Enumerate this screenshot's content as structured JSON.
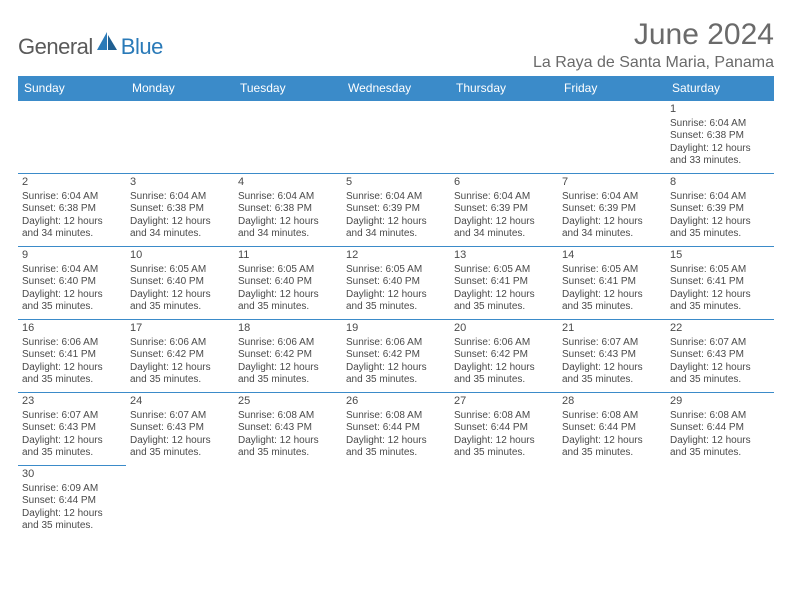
{
  "logo": {
    "general": "General",
    "blue": "Blue"
  },
  "title": "June 2024",
  "location": "La Raya de Santa Maria, Panama",
  "colors": {
    "header_bg": "#3b8bc9",
    "header_fg": "#ffffff",
    "border": "#3b8bc9",
    "text": "#4a4a4a",
    "title": "#6a6a6a",
    "logo_gray": "#5a5a5a",
    "logo_blue": "#2a7ab8"
  },
  "typography": {
    "title_fontsize": 30,
    "location_fontsize": 16,
    "header_fontsize": 12,
    "cell_fontsize": 10
  },
  "days_of_week": [
    "Sunday",
    "Monday",
    "Tuesday",
    "Wednesday",
    "Thursday",
    "Friday",
    "Saturday"
  ],
  "weeks": [
    [
      null,
      null,
      null,
      null,
      null,
      null,
      {
        "n": "1",
        "sr": "6:04 AM",
        "ss": "6:38 PM",
        "dl": "12 hours and 33 minutes."
      }
    ],
    [
      {
        "n": "2",
        "sr": "6:04 AM",
        "ss": "6:38 PM",
        "dl": "12 hours and 34 minutes."
      },
      {
        "n": "3",
        "sr": "6:04 AM",
        "ss": "6:38 PM",
        "dl": "12 hours and 34 minutes."
      },
      {
        "n": "4",
        "sr": "6:04 AM",
        "ss": "6:38 PM",
        "dl": "12 hours and 34 minutes."
      },
      {
        "n": "5",
        "sr": "6:04 AM",
        "ss": "6:39 PM",
        "dl": "12 hours and 34 minutes."
      },
      {
        "n": "6",
        "sr": "6:04 AM",
        "ss": "6:39 PM",
        "dl": "12 hours and 34 minutes."
      },
      {
        "n": "7",
        "sr": "6:04 AM",
        "ss": "6:39 PM",
        "dl": "12 hours and 34 minutes."
      },
      {
        "n": "8",
        "sr": "6:04 AM",
        "ss": "6:39 PM",
        "dl": "12 hours and 35 minutes."
      }
    ],
    [
      {
        "n": "9",
        "sr": "6:04 AM",
        "ss": "6:40 PM",
        "dl": "12 hours and 35 minutes."
      },
      {
        "n": "10",
        "sr": "6:05 AM",
        "ss": "6:40 PM",
        "dl": "12 hours and 35 minutes."
      },
      {
        "n": "11",
        "sr": "6:05 AM",
        "ss": "6:40 PM",
        "dl": "12 hours and 35 minutes."
      },
      {
        "n": "12",
        "sr": "6:05 AM",
        "ss": "6:40 PM",
        "dl": "12 hours and 35 minutes."
      },
      {
        "n": "13",
        "sr": "6:05 AM",
        "ss": "6:41 PM",
        "dl": "12 hours and 35 minutes."
      },
      {
        "n": "14",
        "sr": "6:05 AM",
        "ss": "6:41 PM",
        "dl": "12 hours and 35 minutes."
      },
      {
        "n": "15",
        "sr": "6:05 AM",
        "ss": "6:41 PM",
        "dl": "12 hours and 35 minutes."
      }
    ],
    [
      {
        "n": "16",
        "sr": "6:06 AM",
        "ss": "6:41 PM",
        "dl": "12 hours and 35 minutes."
      },
      {
        "n": "17",
        "sr": "6:06 AM",
        "ss": "6:42 PM",
        "dl": "12 hours and 35 minutes."
      },
      {
        "n": "18",
        "sr": "6:06 AM",
        "ss": "6:42 PM",
        "dl": "12 hours and 35 minutes."
      },
      {
        "n": "19",
        "sr": "6:06 AM",
        "ss": "6:42 PM",
        "dl": "12 hours and 35 minutes."
      },
      {
        "n": "20",
        "sr": "6:06 AM",
        "ss": "6:42 PM",
        "dl": "12 hours and 35 minutes."
      },
      {
        "n": "21",
        "sr": "6:07 AM",
        "ss": "6:43 PM",
        "dl": "12 hours and 35 minutes."
      },
      {
        "n": "22",
        "sr": "6:07 AM",
        "ss": "6:43 PM",
        "dl": "12 hours and 35 minutes."
      }
    ],
    [
      {
        "n": "23",
        "sr": "6:07 AM",
        "ss": "6:43 PM",
        "dl": "12 hours and 35 minutes."
      },
      {
        "n": "24",
        "sr": "6:07 AM",
        "ss": "6:43 PM",
        "dl": "12 hours and 35 minutes."
      },
      {
        "n": "25",
        "sr": "6:08 AM",
        "ss": "6:43 PM",
        "dl": "12 hours and 35 minutes."
      },
      {
        "n": "26",
        "sr": "6:08 AM",
        "ss": "6:44 PM",
        "dl": "12 hours and 35 minutes."
      },
      {
        "n": "27",
        "sr": "6:08 AM",
        "ss": "6:44 PM",
        "dl": "12 hours and 35 minutes."
      },
      {
        "n": "28",
        "sr": "6:08 AM",
        "ss": "6:44 PM",
        "dl": "12 hours and 35 minutes."
      },
      {
        "n": "29",
        "sr": "6:08 AM",
        "ss": "6:44 PM",
        "dl": "12 hours and 35 minutes."
      }
    ],
    [
      {
        "n": "30",
        "sr": "6:09 AM",
        "ss": "6:44 PM",
        "dl": "12 hours and 35 minutes."
      },
      null,
      null,
      null,
      null,
      null,
      null
    ]
  ],
  "labels": {
    "sunrise": "Sunrise: ",
    "sunset": "Sunset: ",
    "daylight": "Daylight: "
  }
}
